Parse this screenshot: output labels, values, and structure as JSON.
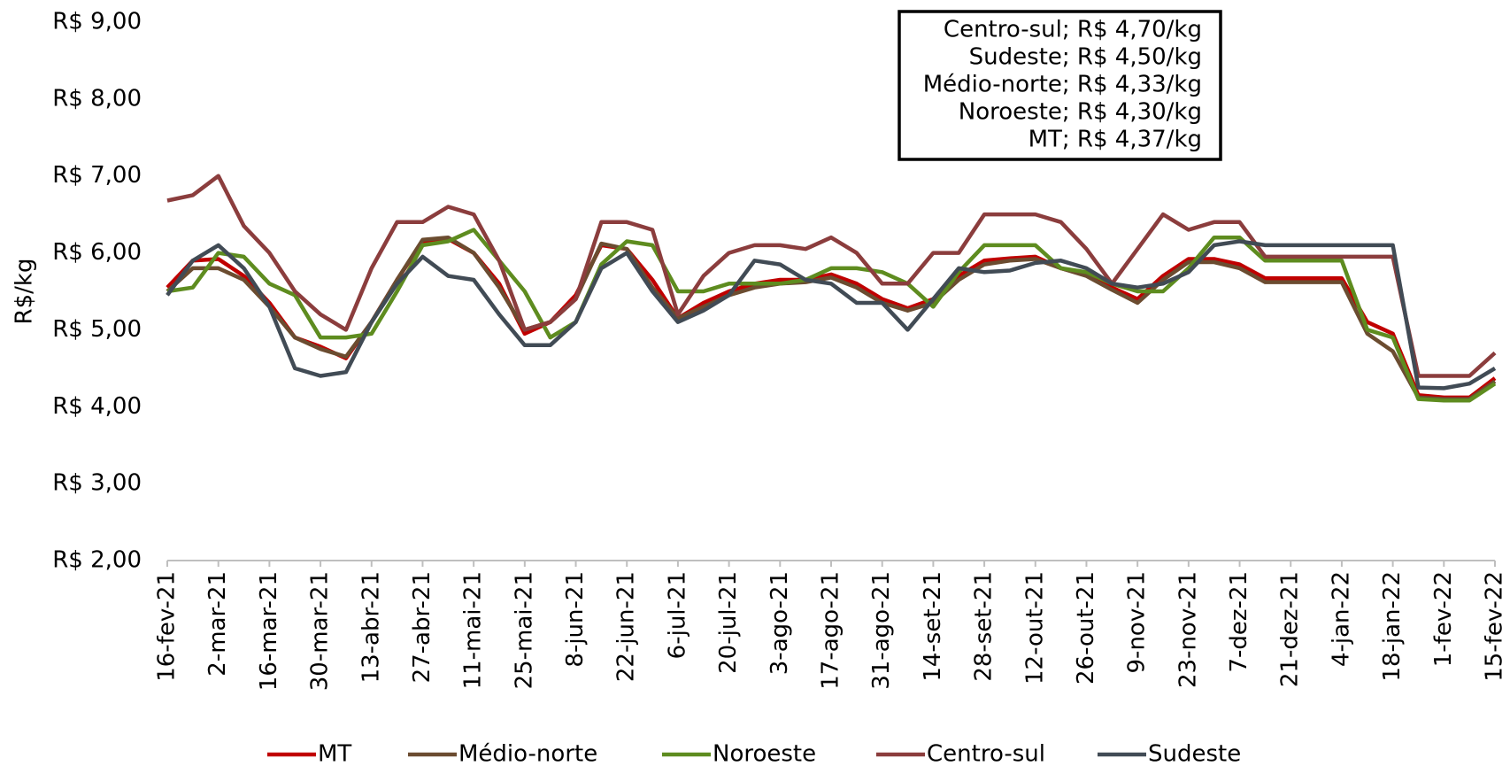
{
  "chart_data": {
    "type": "line",
    "y_label": "R$/kg",
    "annotations": [
      "Centro-sul; R$ 4,70/kg",
      "Sudeste; R$ 4,50/kg",
      "Médio-norte; R$ 4,33/kg",
      "Noroeste; R$ 4,30/kg",
      "MT; R$ 4,37/kg"
    ],
    "categories": [
      "16-fev-21",
      null,
      "2-mar-21",
      null,
      "16-mar-21",
      null,
      "30-mar-21",
      null,
      "13-abr-21",
      null,
      "27-abr-21",
      null,
      "11-mai-21",
      null,
      "25-mai-21",
      null,
      "8-jun-21",
      null,
      "22-jun-21",
      null,
      "6-jul-21",
      null,
      "20-jul-21",
      null,
      "3-ago-21",
      null,
      "17-ago-21",
      null,
      "31-ago-21",
      null,
      "14-set-21",
      null,
      "28-set-21",
      null,
      "12-out-21",
      null,
      "26-out-21",
      null,
      "9-nov-21",
      null,
      "23-nov-21",
      null,
      "7-dez-21",
      null,
      "21-dez-21",
      null,
      "4-jan-22",
      null,
      "18-jan-22",
      null,
      "1-fev-22",
      null,
      "15-fev-22"
    ],
    "series": [
      {
        "name": "MT",
        "color": "#c00000",
        "values": [
          5.55,
          5.9,
          5.92,
          5.7,
          5.35,
          4.9,
          4.78,
          4.63,
          5.1,
          5.65,
          6.15,
          6.18,
          6.0,
          5.6,
          4.95,
          5.1,
          5.45,
          6.1,
          6.05,
          5.65,
          5.15,
          5.35,
          5.5,
          5.6,
          5.65,
          5.65,
          5.72,
          5.6,
          5.4,
          5.28,
          5.4,
          5.7,
          5.9,
          5.93,
          5.95,
          5.8,
          5.72,
          5.55,
          5.4,
          5.7,
          5.92,
          5.92,
          5.85,
          5.67,
          5.67,
          5.67,
          5.67,
          5.1,
          4.95,
          4.15,
          4.12,
          4.12,
          4.37
        ]
      },
      {
        "name": "Médio-norte",
        "color": "#6b4c30",
        "values": [
          5.5,
          5.8,
          5.8,
          5.65,
          5.3,
          4.9,
          4.75,
          4.65,
          5.1,
          5.65,
          6.17,
          6.2,
          6.0,
          5.55,
          5.0,
          5.1,
          5.4,
          6.12,
          6.05,
          5.55,
          5.15,
          5.3,
          5.45,
          5.55,
          5.6,
          5.62,
          5.68,
          5.55,
          5.35,
          5.25,
          5.35,
          5.65,
          5.85,
          5.9,
          5.92,
          5.8,
          5.7,
          5.52,
          5.35,
          5.65,
          5.88,
          5.88,
          5.8,
          5.62,
          5.62,
          5.62,
          5.62,
          4.95,
          4.72,
          4.12,
          4.1,
          4.1,
          4.33
        ]
      },
      {
        "name": "Noroeste",
        "color": "#5e8c1f",
        "values": [
          5.5,
          5.55,
          6.0,
          5.95,
          5.6,
          5.45,
          4.9,
          4.9,
          4.95,
          5.5,
          6.1,
          6.15,
          6.3,
          5.9,
          5.5,
          4.9,
          5.1,
          5.85,
          6.15,
          6.1,
          5.5,
          5.5,
          5.6,
          5.6,
          5.6,
          5.65,
          5.8,
          5.8,
          5.75,
          5.6,
          5.3,
          5.75,
          6.1,
          6.1,
          6.1,
          5.8,
          5.75,
          5.6,
          5.5,
          5.5,
          5.8,
          6.2,
          6.2,
          5.9,
          5.9,
          5.9,
          5.9,
          5.0,
          4.9,
          4.1,
          4.08,
          4.08,
          4.3
        ]
      },
      {
        "name": "Centro-sul",
        "color": "#8b3d3d",
        "values": [
          6.68,
          6.75,
          7.0,
          6.35,
          6.0,
          5.5,
          5.2,
          5.0,
          5.8,
          6.4,
          6.4,
          6.6,
          6.5,
          5.9,
          5.0,
          5.1,
          5.4,
          6.4,
          6.4,
          6.3,
          5.2,
          5.7,
          6.0,
          6.1,
          6.1,
          6.05,
          6.2,
          6.0,
          5.6,
          5.6,
          6.0,
          6.0,
          6.5,
          6.5,
          6.5,
          6.4,
          6.05,
          5.6,
          6.05,
          6.5,
          6.3,
          6.4,
          6.4,
          5.95,
          5.95,
          5.95,
          5.95,
          5.95,
          5.95,
          4.4,
          4.4,
          4.4,
          4.7
        ]
      },
      {
        "name": "Sudeste",
        "color": "#414b55",
        "values": [
          5.45,
          5.9,
          6.1,
          5.8,
          5.3,
          4.5,
          4.4,
          4.45,
          5.1,
          5.6,
          5.95,
          5.7,
          5.65,
          5.2,
          4.8,
          4.8,
          5.1,
          5.8,
          6.0,
          5.5,
          5.1,
          5.25,
          5.45,
          5.9,
          5.85,
          5.65,
          5.6,
          5.35,
          5.35,
          5.0,
          5.4,
          5.8,
          5.75,
          5.77,
          5.87,
          5.9,
          5.8,
          5.6,
          5.55,
          5.6,
          5.75,
          6.1,
          6.15,
          6.1,
          6.1,
          6.1,
          6.1,
          6.1,
          6.1,
          4.25,
          4.24,
          4.3,
          4.5
        ]
      }
    ],
    "ylim": [
      2,
      9
    ],
    "yticks": [
      {
        "value": 2,
        "label": "R$ 2,00"
      },
      {
        "value": 3,
        "label": "R$ 3,00"
      },
      {
        "value": 4,
        "label": "R$ 4,00"
      },
      {
        "value": 5,
        "label": "R$ 5,00"
      },
      {
        "value": 6,
        "label": "R$ 6,00"
      },
      {
        "value": 7,
        "label": "R$ 7,00"
      },
      {
        "value": 8,
        "label": "R$ 8,00"
      },
      {
        "value": 9,
        "label": "R$ 9,00"
      }
    ],
    "grid": false,
    "legend": "bottom"
  }
}
